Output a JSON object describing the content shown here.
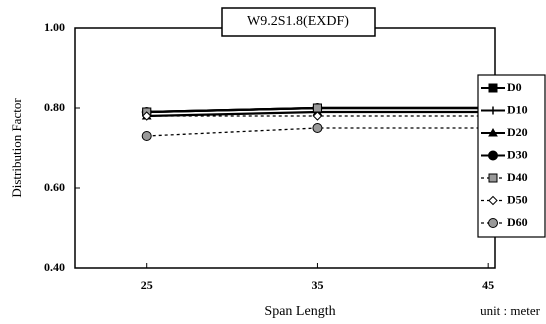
{
  "chart_data": {
    "type": "line",
    "title": "W9.2S1.8(EXDF)",
    "x_label": "Span Length",
    "y_label": "Distribution Factor",
    "annotation": "unit : meter",
    "x": [
      25,
      35,
      45
    ],
    "xlim": [
      20.8,
      45.4
    ],
    "xticks": [
      25,
      35,
      45
    ],
    "ylim": [
      0.4,
      1.0
    ],
    "yticks": [
      {
        "value": 0.4,
        "label": "0.40"
      },
      {
        "value": 0.6,
        "label": "0.60"
      },
      {
        "value": 0.8,
        "label": "0.80"
      },
      {
        "value": 1.0,
        "label": "1.00"
      }
    ],
    "legend": "right",
    "series": [
      {
        "name": "D0",
        "color": "#000000",
        "dashed": false,
        "marker": "square",
        "values": [
          0.79,
          0.8,
          0.8
        ]
      },
      {
        "name": "D10",
        "color": "#000000",
        "dashed": false,
        "marker": "plus",
        "values": [
          0.79,
          0.8,
          0.8
        ]
      },
      {
        "name": "D20",
        "color": "#000000",
        "dashed": false,
        "marker": "triangle",
        "values": [
          0.78,
          0.79,
          0.79
        ]
      },
      {
        "name": "D30",
        "color": "#000000",
        "dashed": false,
        "marker": "circle",
        "values": [
          0.79,
          0.8,
          0.8
        ]
      },
      {
        "name": "D40",
        "color": "#000000",
        "dashed": true,
        "marker": "square-grey",
        "values": [
          0.79,
          0.8,
          0.8
        ]
      },
      {
        "name": "D50",
        "color": "#000000",
        "dashed": true,
        "marker": "diamond",
        "values": [
          0.78,
          0.78,
          0.78
        ]
      },
      {
        "name": "D60",
        "color": "#000000",
        "dashed": true,
        "marker": "circle-grey",
        "values": [
          0.73,
          0.75,
          0.75
        ]
      }
    ]
  }
}
